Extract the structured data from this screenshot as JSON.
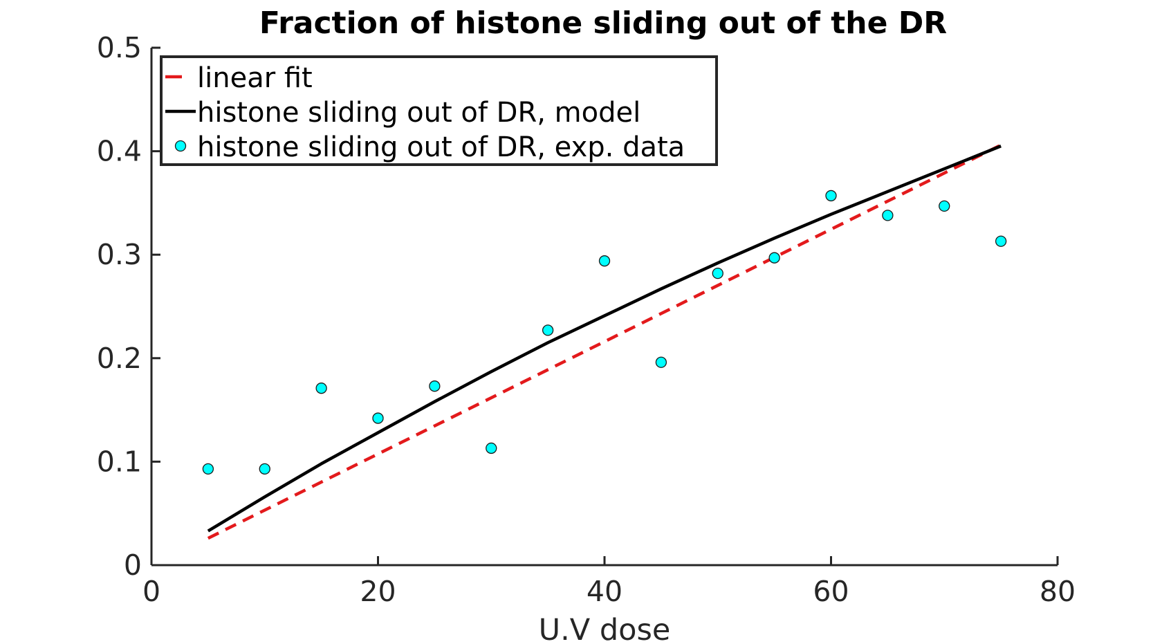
{
  "chart_data": {
    "type": "line",
    "title": "Fraction of histone sliding out of the DR",
    "xlabel": "U.V dose",
    "ylabel": "",
    "xlim": [
      0,
      80
    ],
    "ylim": [
      0,
      0.5
    ],
    "xticks": [
      "0",
      "20",
      "40",
      "60",
      "80"
    ],
    "yticks": [
      "0",
      "0.1",
      "0.2",
      "0.3",
      "0.4",
      "0.5"
    ],
    "grid": false,
    "legend_position": "top-left",
    "series": [
      {
        "name": "linear fit",
        "style": "dashed",
        "color": "#e31a1c",
        "x": [
          5,
          75
        ],
        "y": [
          0.026,
          0.406
        ]
      },
      {
        "name": "histone sliding out of DR, model",
        "style": "solid",
        "color": "#000000",
        "x": [
          5,
          10,
          15,
          20,
          25,
          30,
          35,
          40,
          45,
          50,
          55,
          60,
          65,
          70,
          75
        ],
        "y": [
          0.033,
          0.066,
          0.098,
          0.128,
          0.158,
          0.187,
          0.215,
          0.241,
          0.267,
          0.292,
          0.316,
          0.339,
          0.361,
          0.383,
          0.405
        ]
      },
      {
        "name": "histone sliding out of DR, exp. data",
        "style": "markers",
        "color": "#00ffff",
        "x": [
          5,
          10,
          15,
          20,
          25,
          30,
          35,
          40,
          45,
          50,
          55,
          60,
          65,
          70,
          75
        ],
        "y": [
          0.093,
          0.093,
          0.171,
          0.142,
          0.173,
          0.113,
          0.227,
          0.294,
          0.196,
          0.282,
          0.297,
          0.357,
          0.338,
          0.347,
          0.313
        ]
      }
    ]
  }
}
